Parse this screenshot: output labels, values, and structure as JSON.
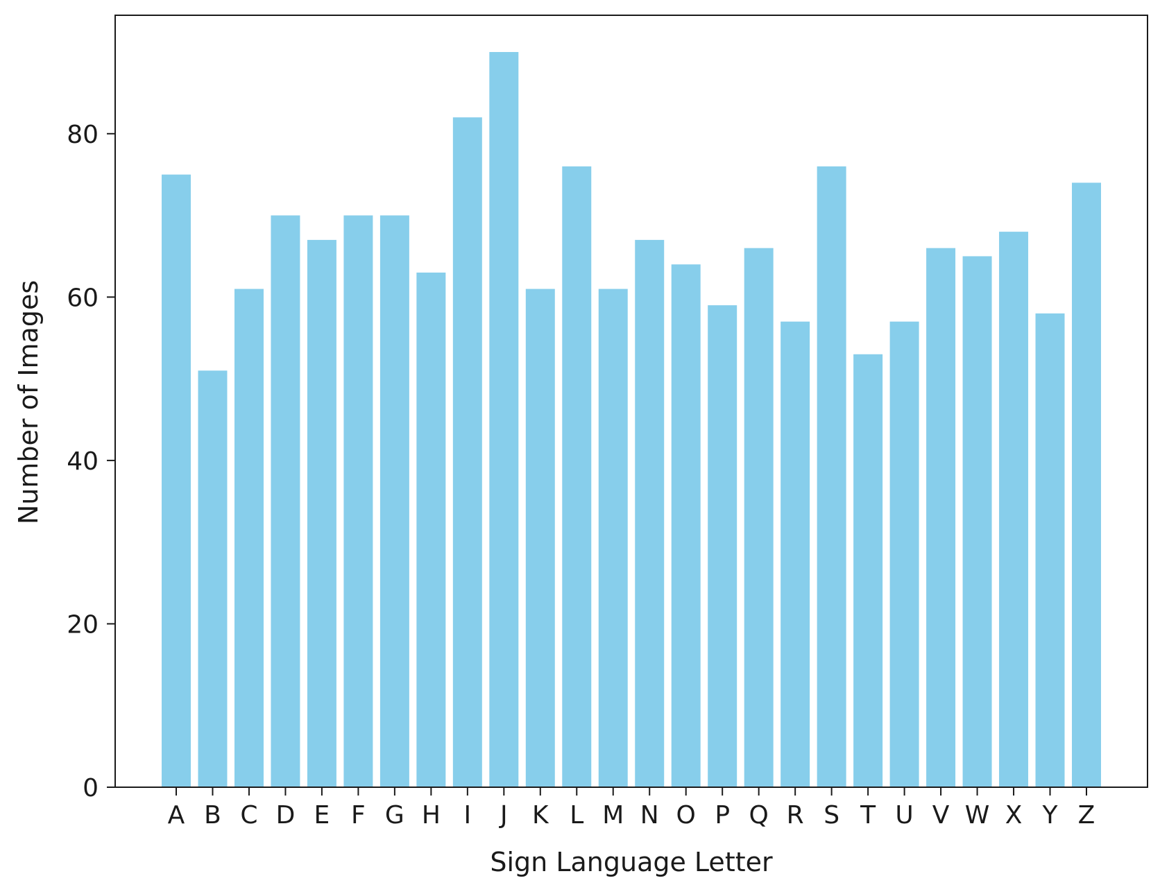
{
  "chart_data": {
    "type": "bar",
    "title": "",
    "xlabel": "Sign Language Letter",
    "ylabel": "Number of Images",
    "categories": [
      "A",
      "B",
      "C",
      "D",
      "E",
      "F",
      "G",
      "H",
      "I",
      "J",
      "K",
      "L",
      "M",
      "N",
      "O",
      "P",
      "Q",
      "R",
      "S",
      "T",
      "U",
      "V",
      "W",
      "X",
      "Y",
      "Z"
    ],
    "values": [
      75,
      51,
      61,
      70,
      67,
      70,
      70,
      63,
      82,
      90,
      61,
      76,
      61,
      67,
      64,
      59,
      66,
      57,
      76,
      53,
      57,
      66,
      65,
      68,
      58,
      74
    ],
    "ylim": [
      0,
      94.5
    ],
    "yticks": [
      0,
      20,
      40,
      60,
      80
    ],
    "grid": false,
    "bar_color": "#87CEEB"
  }
}
